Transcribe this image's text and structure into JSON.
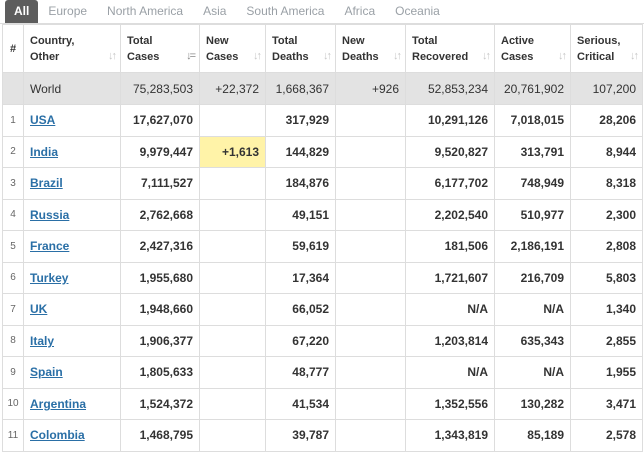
{
  "tabs": [
    "All",
    "Europe",
    "North America",
    "Asia",
    "South America",
    "Africa",
    "Oceania"
  ],
  "headers": {
    "index": "#",
    "country": [
      "Country,",
      "Other"
    ],
    "total_cases": [
      "Total",
      "Cases"
    ],
    "new_cases": [
      "New",
      "Cases"
    ],
    "total_deaths": [
      "Total",
      "Deaths"
    ],
    "new_deaths": [
      "New",
      "Deaths"
    ],
    "total_recovered": [
      "Total",
      "Recovered"
    ],
    "active_cases": [
      "Active",
      "Cases"
    ],
    "serious_critical": [
      "Serious,",
      "Critical"
    ]
  },
  "sort_icons": {
    "default": "↓↑",
    "active": "↓="
  },
  "world": {
    "country": "World",
    "total_cases": "75,283,503",
    "new_cases": "+22,372",
    "total_deaths": "1,668,367",
    "new_deaths": "+926",
    "total_recovered": "52,853,234",
    "active_cases": "20,761,902",
    "serious_critical": "107,200"
  },
  "rows": [
    {
      "idx": "1",
      "country": "USA",
      "total_cases": "17,627,070",
      "new_cases": "",
      "total_deaths": "317,929",
      "new_deaths": "",
      "total_recovered": "10,291,126",
      "active_cases": "7,018,015",
      "serious_critical": "28,206"
    },
    {
      "idx": "2",
      "country": "India",
      "total_cases": "9,979,447",
      "new_cases": "+1,613",
      "total_deaths": "144,829",
      "new_deaths": "",
      "total_recovered": "9,520,827",
      "active_cases": "313,791",
      "serious_critical": "8,944"
    },
    {
      "idx": "3",
      "country": "Brazil",
      "total_cases": "7,111,527",
      "new_cases": "",
      "total_deaths": "184,876",
      "new_deaths": "",
      "total_recovered": "6,177,702",
      "active_cases": "748,949",
      "serious_critical": "8,318"
    },
    {
      "idx": "4",
      "country": "Russia",
      "total_cases": "2,762,668",
      "new_cases": "",
      "total_deaths": "49,151",
      "new_deaths": "",
      "total_recovered": "2,202,540",
      "active_cases": "510,977",
      "serious_critical": "2,300"
    },
    {
      "idx": "5",
      "country": "France",
      "total_cases": "2,427,316",
      "new_cases": "",
      "total_deaths": "59,619",
      "new_deaths": "",
      "total_recovered": "181,506",
      "active_cases": "2,186,191",
      "serious_critical": "2,808"
    },
    {
      "idx": "6",
      "country": "Turkey",
      "total_cases": "1,955,680",
      "new_cases": "",
      "total_deaths": "17,364",
      "new_deaths": "",
      "total_recovered": "1,721,607",
      "active_cases": "216,709",
      "serious_critical": "5,803"
    },
    {
      "idx": "7",
      "country": "UK",
      "total_cases": "1,948,660",
      "new_cases": "",
      "total_deaths": "66,052",
      "new_deaths": "",
      "total_recovered": "N/A",
      "active_cases": "N/A",
      "serious_critical": "1,340"
    },
    {
      "idx": "8",
      "country": "Italy",
      "total_cases": "1,906,377",
      "new_cases": "",
      "total_deaths": "67,220",
      "new_deaths": "",
      "total_recovered": "1,203,814",
      "active_cases": "635,343",
      "serious_critical": "2,855"
    },
    {
      "idx": "9",
      "country": "Spain",
      "total_cases": "1,805,633",
      "new_cases": "",
      "total_deaths": "48,777",
      "new_deaths": "",
      "total_recovered": "N/A",
      "active_cases": "N/A",
      "serious_critical": "1,955"
    },
    {
      "idx": "10",
      "country": "Argentina",
      "total_cases": "1,524,372",
      "new_cases": "",
      "total_deaths": "41,534",
      "new_deaths": "",
      "total_recovered": "1,352,556",
      "active_cases": "130,282",
      "serious_critical": "3,471"
    },
    {
      "idx": "11",
      "country": "Colombia",
      "total_cases": "1,468,795",
      "new_cases": "",
      "total_deaths": "39,787",
      "new_deaths": "",
      "total_recovered": "1,343,819",
      "active_cases": "85,189",
      "serious_critical": "2,578"
    }
  ],
  "colors": {
    "tab_active_bg": "#5d5d5d",
    "world_row_bg": "#e3e3e3",
    "new_cases_highlight": "#fff3a8",
    "country_link": "#2a6fa6"
  }
}
